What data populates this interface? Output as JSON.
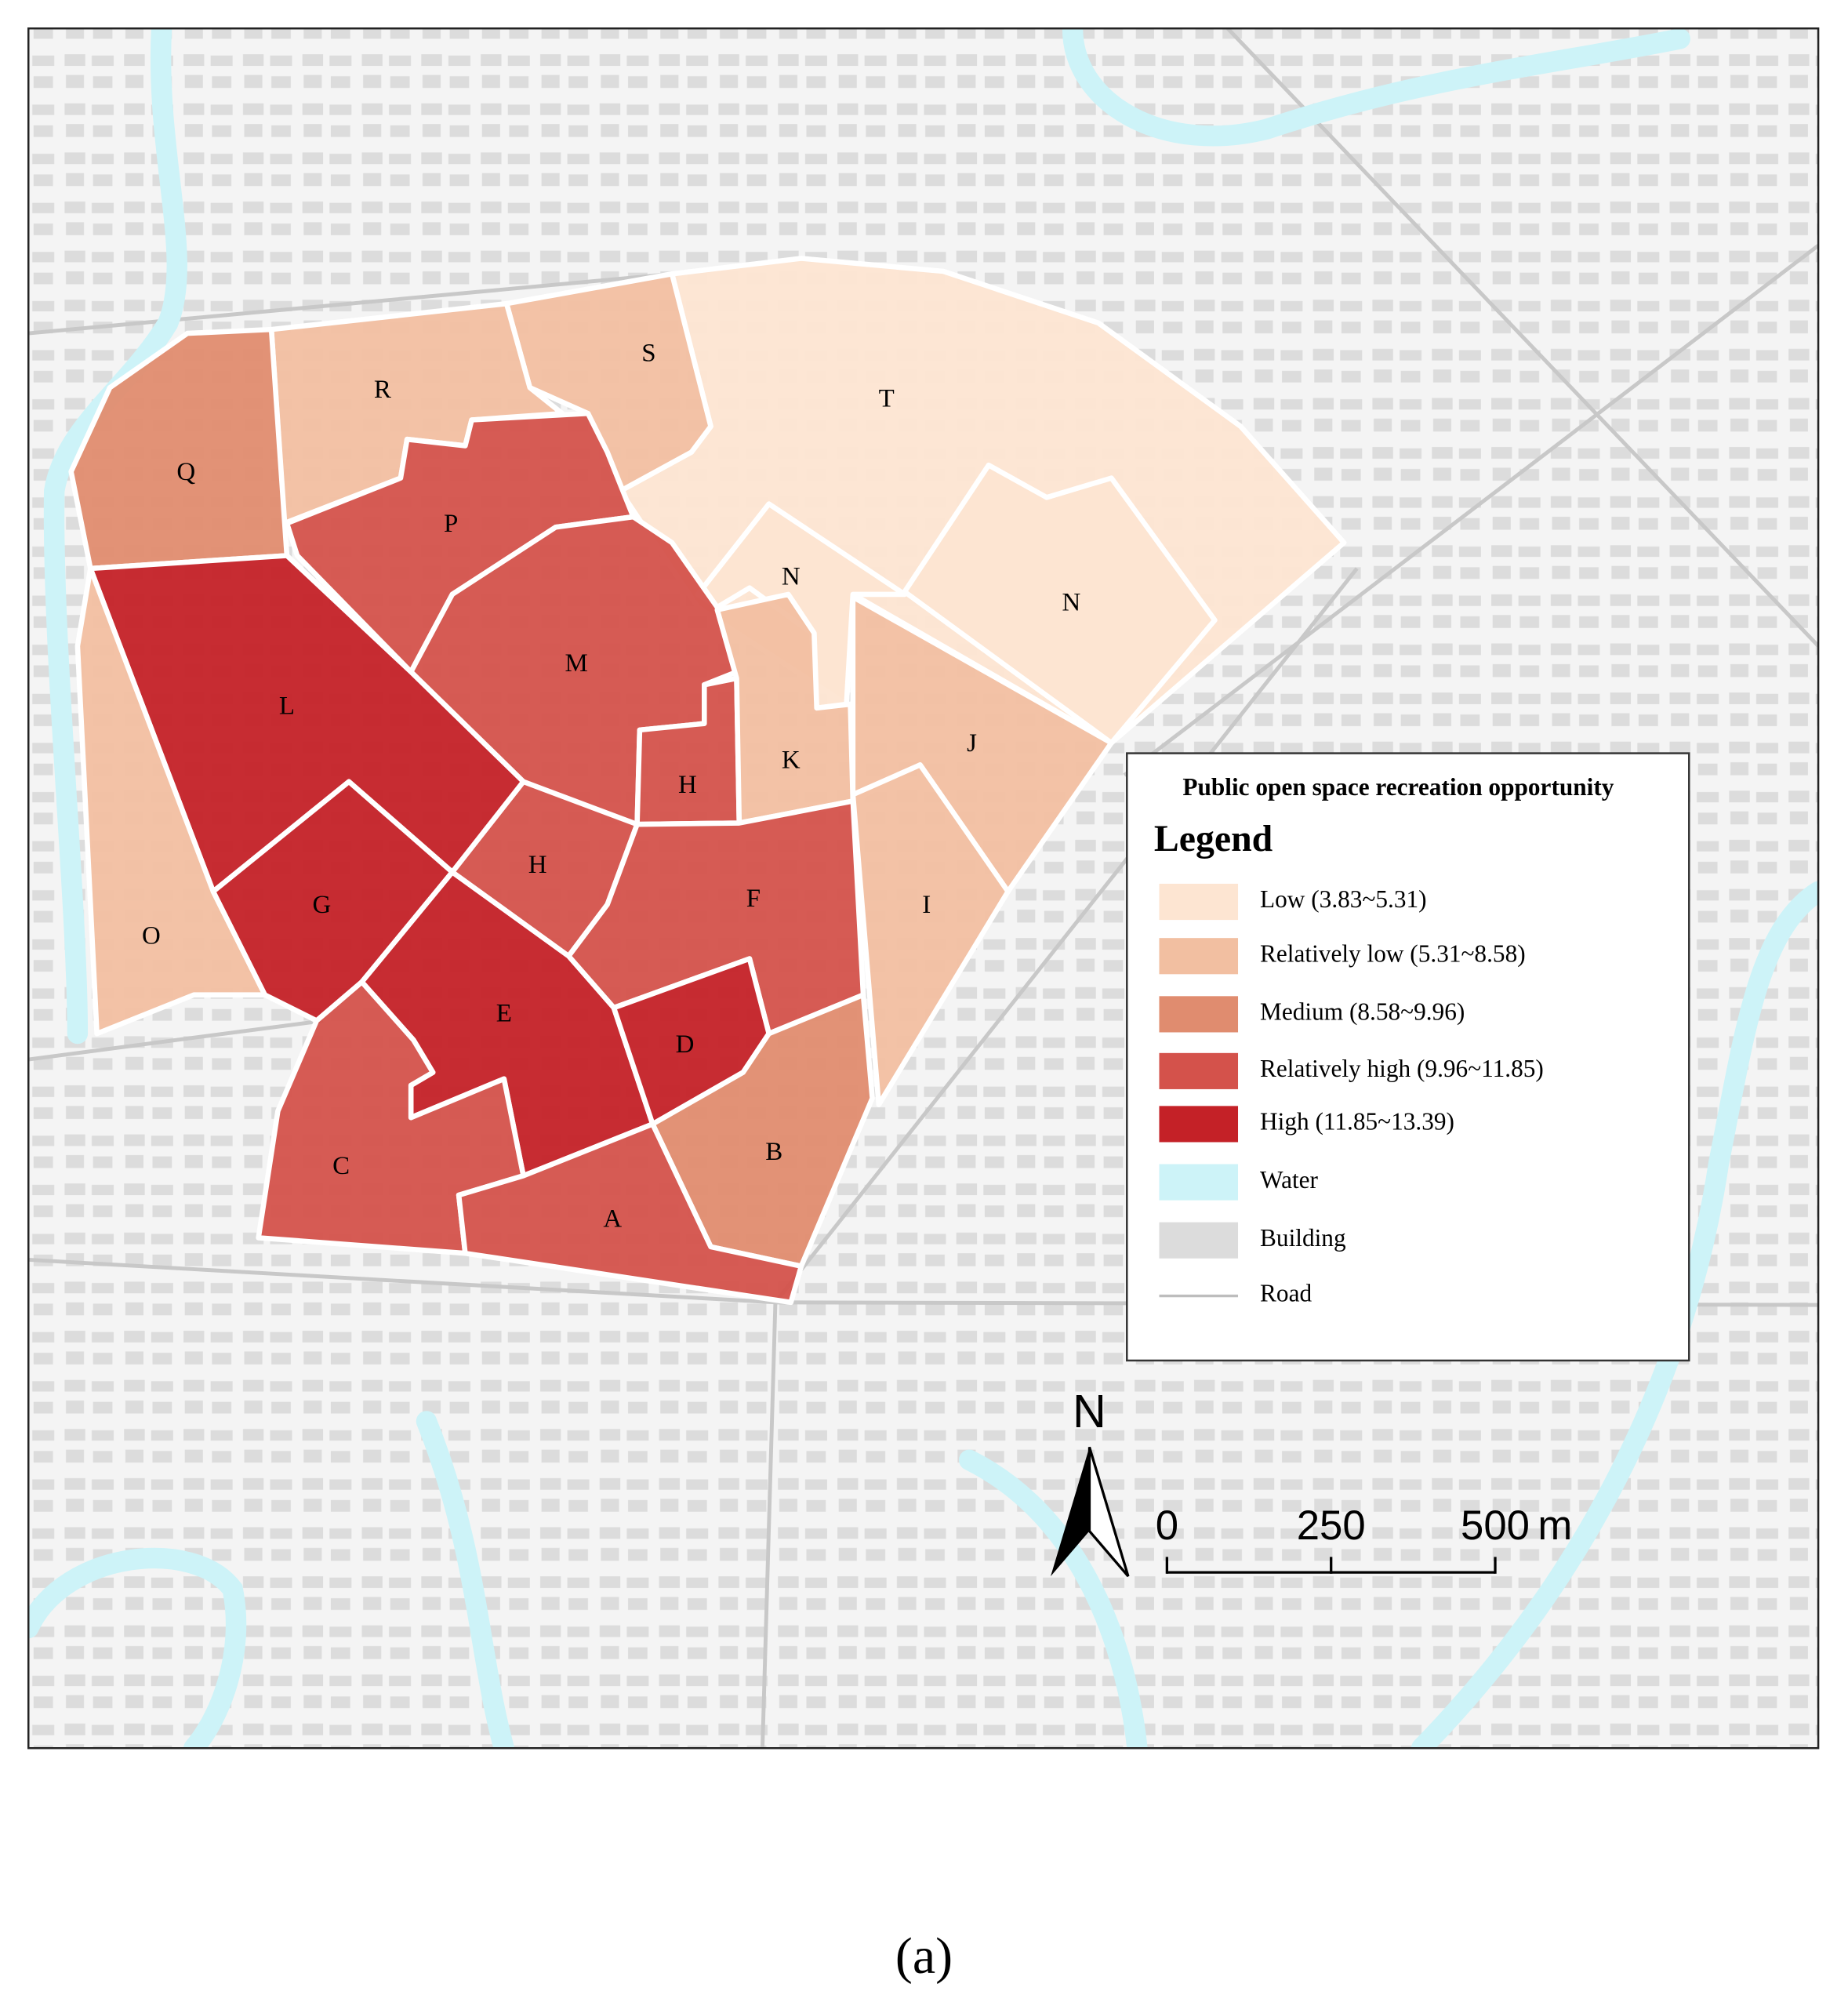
{
  "legend": {
    "title": "Public open space recreation opportunity",
    "heading": "Legend",
    "items": [
      {
        "label": "Low (3.83~5.31)",
        "color": "#fde5d2"
      },
      {
        "label": "Relatively low (5.31~8.58)",
        "color": "#f2bfa1"
      },
      {
        "label": "Medium (8.58~9.96)",
        "color": "#e08c6f"
      },
      {
        "label": "Relatively  high (9.96~11.85)",
        "color": "#d4524b"
      },
      {
        "label": "High (11.85~13.39)",
        "color": "#c42127"
      },
      {
        "label": "Water",
        "color": "#cdf3f8"
      },
      {
        "label": "Building",
        "color": "#dcdcdc"
      },
      {
        "label": "Road",
        "color": "#bdbdbd"
      }
    ]
  },
  "zones": [
    {
      "label": "T",
      "color": "#fde5d2"
    },
    {
      "label": "N",
      "color": "#fde5d2"
    },
    {
      "label": "N",
      "color": "#fde5d2"
    },
    {
      "label": "S",
      "color": "#f2bfa1"
    },
    {
      "label": "R",
      "color": "#f2bfa1"
    },
    {
      "label": "Q",
      "color": "#e08c6f"
    },
    {
      "label": "P",
      "color": "#d4524b"
    },
    {
      "label": "M",
      "color": "#d4524b"
    },
    {
      "label": "H",
      "color": "#d4524b"
    },
    {
      "label": "K",
      "color": "#f2bfa1"
    },
    {
      "label": "J",
      "color": "#f2bfa1"
    },
    {
      "label": "I",
      "color": "#f2bfa1"
    },
    {
      "label": "L",
      "color": "#c42127"
    },
    {
      "label": "O",
      "color": "#f2bfa1"
    },
    {
      "label": "G",
      "color": "#c42127"
    },
    {
      "label": "H",
      "color": "#d4524b"
    },
    {
      "label": "F",
      "color": "#d4524b"
    },
    {
      "label": "E",
      "color": "#c42127"
    },
    {
      "label": "D",
      "color": "#c42127"
    },
    {
      "label": "B",
      "color": "#e08c6f"
    },
    {
      "label": "C",
      "color": "#d4524b"
    },
    {
      "label": "A",
      "color": "#d4524b"
    }
  ],
  "north": "N",
  "scale_bar": {
    "ticks": [
      0,
      250,
      500
    ],
    "unit": "m"
  },
  "caption": "(a)"
}
